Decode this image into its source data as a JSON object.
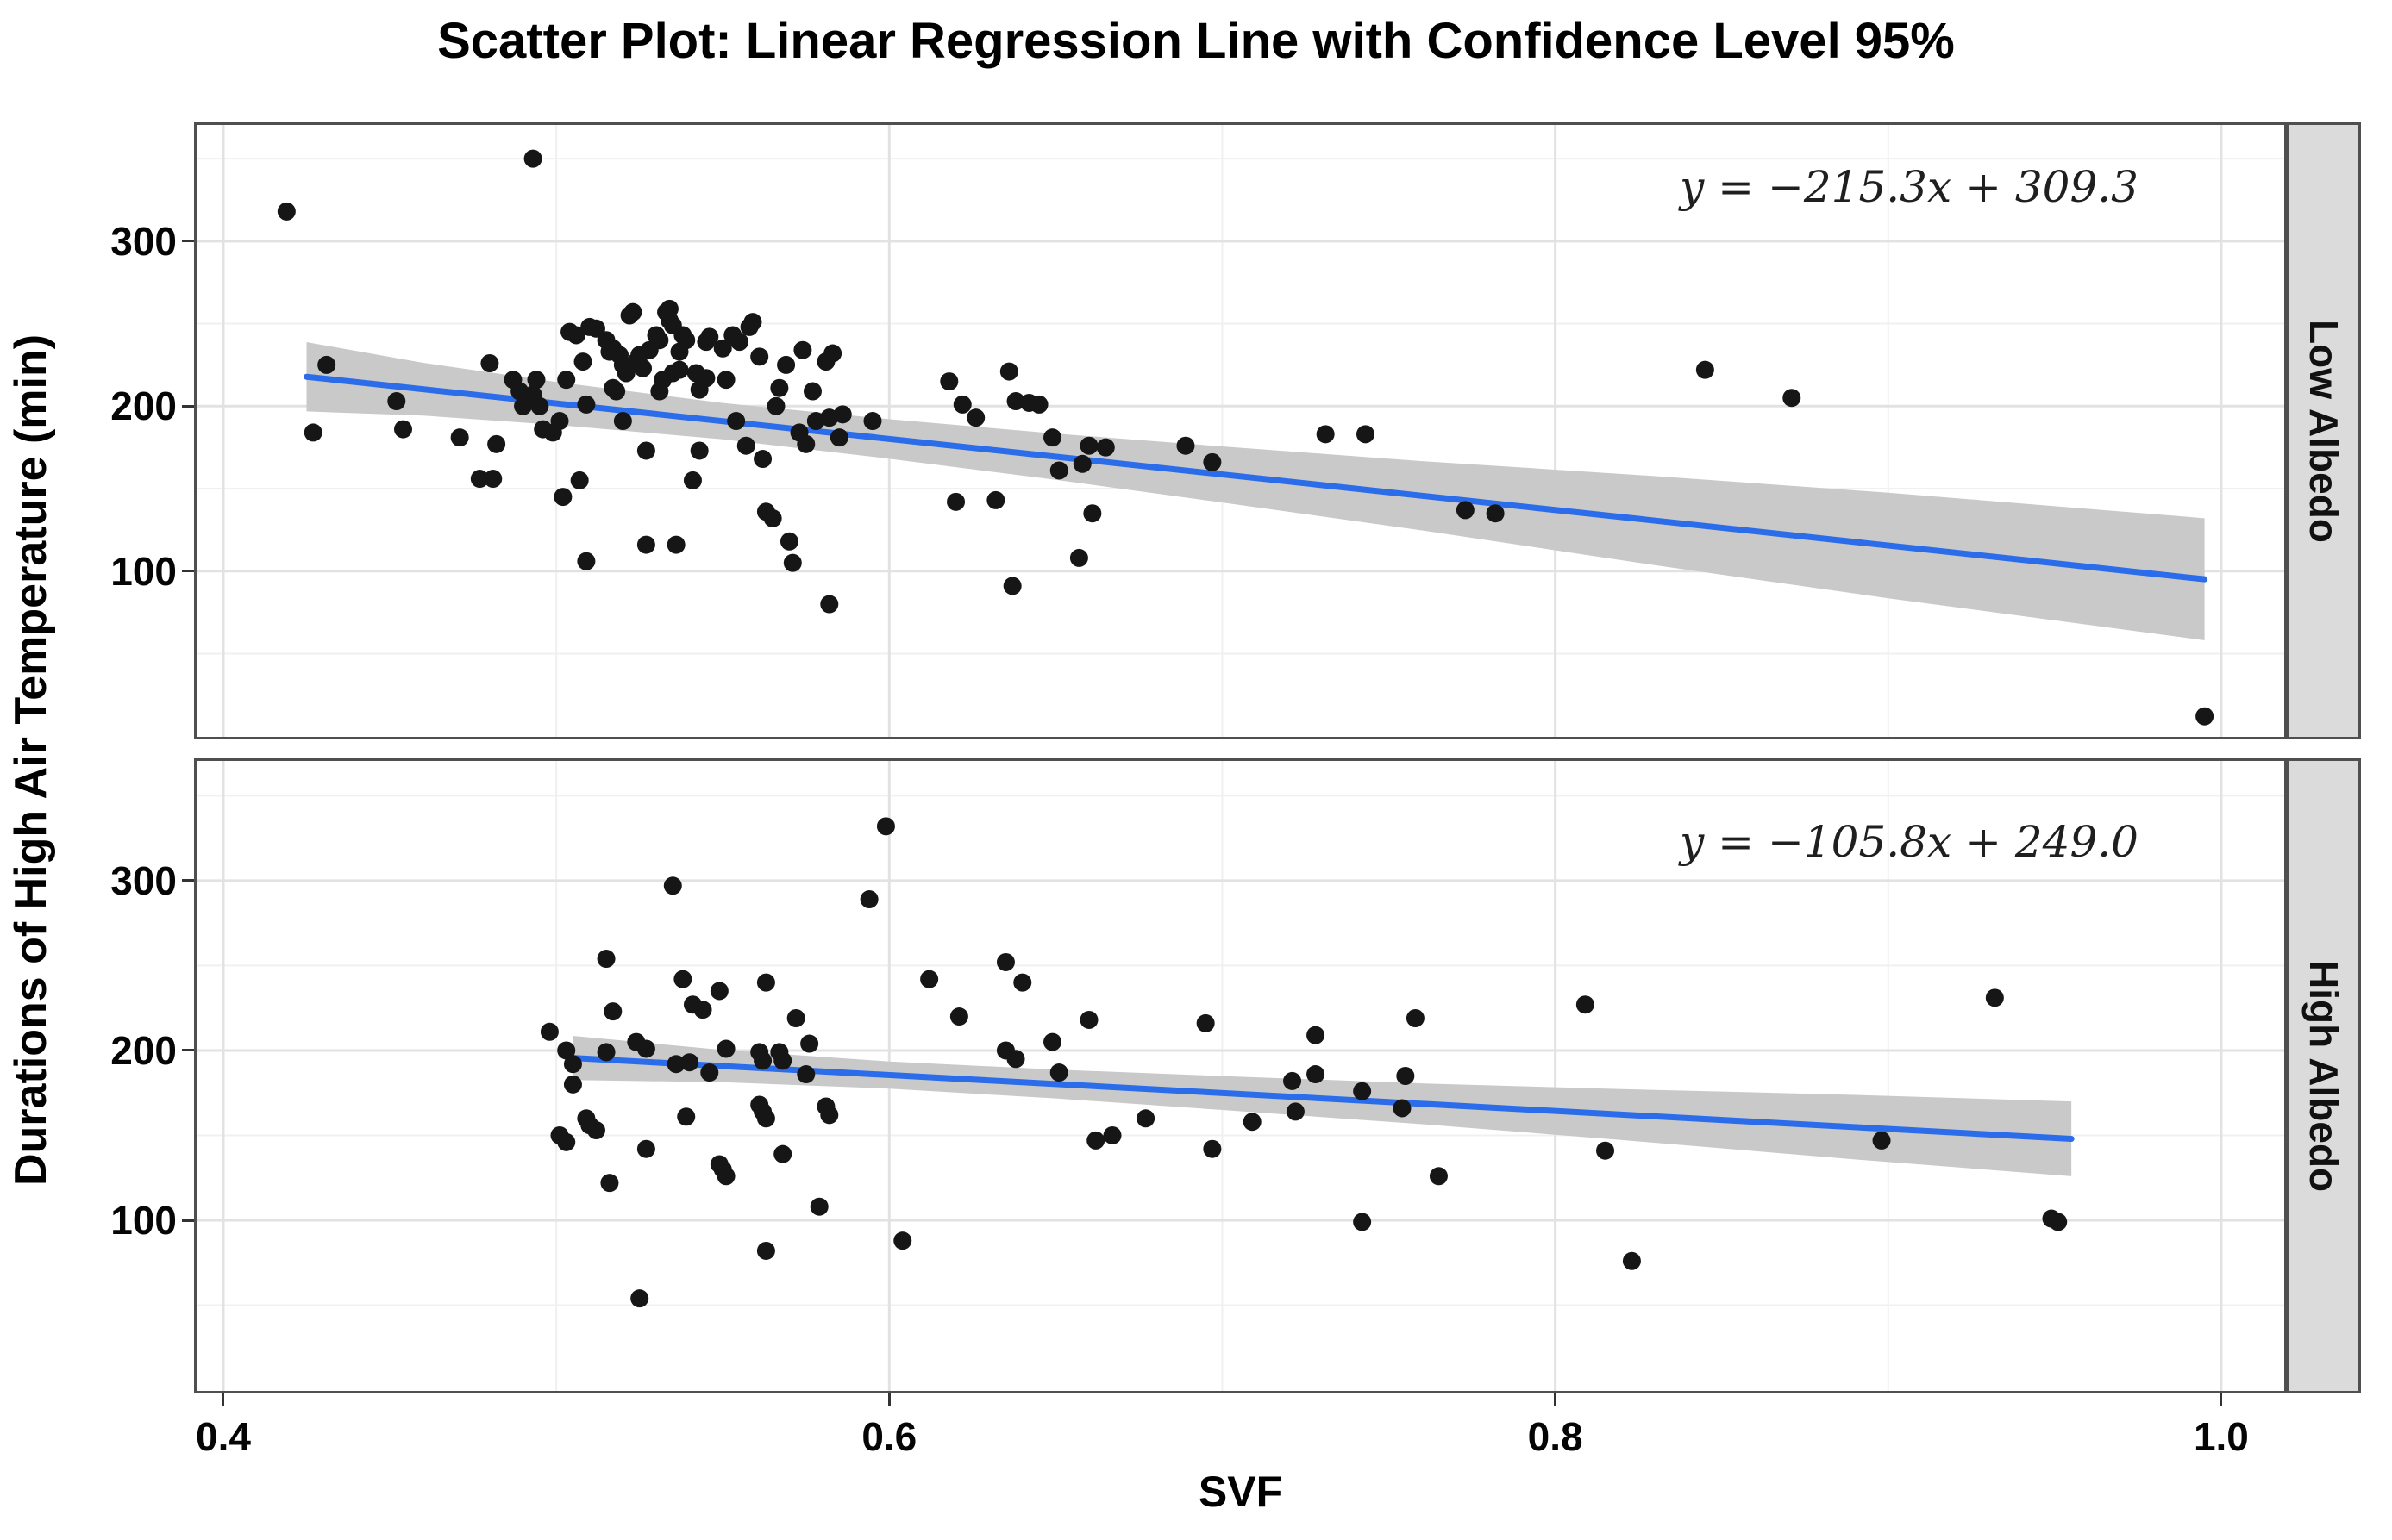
{
  "chart_data": {
    "type": "scatter",
    "title": "Scatter Plot: Linear Regression Line with Confidence Level 95%",
    "xlabel": "SVF",
    "ylabel": "Durations of High Air Temperature (min)",
    "legend": "none",
    "grid": "on",
    "xlim": [
      0.3912,
      1.0197
    ],
    "ylim": [
      -2,
      372
    ],
    "x_ticks": [
      0.4,
      0.6,
      0.8,
      1.0
    ],
    "x_tick_labels": [
      "0.4",
      "0.6",
      "0.8",
      "1.0"
    ],
    "x_minor_ticks": [
      0.5,
      0.7,
      0.9
    ],
    "y_ticks": [
      100,
      200,
      300
    ],
    "y_tick_labels": [
      "100",
      "200",
      "300"
    ],
    "y_minor_ticks": [
      50,
      150,
      250,
      350
    ],
    "colors": {
      "point": "#161616",
      "regression_line": "#2b6ceb",
      "confidence_band": "#c9c9c9",
      "grid_major": "#e2e2e2",
      "grid_minor": "#f0f0f0",
      "panel_border": "#4f4f4f",
      "strip_background": "#dbdbdb",
      "strip_border": "#4f4f4f",
      "text": "#000000"
    },
    "facets": [
      {
        "label": "Low Albedo",
        "equation": "y = −215.3x + 309.3",
        "slope": -215.3,
        "intercept": 309.3,
        "line_x_range": [
          0.425,
          0.995
        ],
        "confidence_band": {
          "x": [
            0.425,
            0.46,
            0.5,
            0.55,
            0.6,
            0.65,
            0.7,
            0.76,
            0.83,
            0.9,
            0.995
          ],
          "half_width": [
            21,
            16,
            13,
            11,
            12,
            14,
            17,
            21,
            27,
            32,
            37
          ]
        },
        "points": [
          [
            0.419,
            318
          ],
          [
            0.427,
            184
          ],
          [
            0.431,
            225
          ],
          [
            0.452,
            203
          ],
          [
            0.454,
            186
          ],
          [
            0.471,
            181
          ],
          [
            0.477,
            156
          ],
          [
            0.481,
            156
          ],
          [
            0.48,
            226
          ],
          [
            0.482,
            177
          ],
          [
            0.487,
            216
          ],
          [
            0.489,
            209
          ],
          [
            0.49,
            200
          ],
          [
            0.493,
            350
          ],
          [
            0.493,
            207
          ],
          [
            0.494,
            216
          ],
          [
            0.495,
            200
          ],
          [
            0.496,
            186
          ],
          [
            0.499,
            184
          ],
          [
            0.501,
            191
          ],
          [
            0.502,
            145
          ],
          [
            0.503,
            216
          ],
          [
            0.504,
            245
          ],
          [
            0.506,
            243
          ],
          [
            0.507,
            155
          ],
          [
            0.508,
            227
          ],
          [
            0.509,
            201
          ],
          [
            0.509,
            106
          ],
          [
            0.51,
            248
          ],
          [
            0.512,
            247
          ],
          [
            0.515,
            240
          ],
          [
            0.516,
            233
          ],
          [
            0.517,
            211
          ],
          [
            0.517,
            235
          ],
          [
            0.518,
            209
          ],
          [
            0.519,
            231
          ],
          [
            0.52,
            225
          ],
          [
            0.52,
            191
          ],
          [
            0.521,
            220
          ],
          [
            0.522,
            255
          ],
          [
            0.523,
            257
          ],
          [
            0.524,
            227
          ],
          [
            0.525,
            231
          ],
          [
            0.526,
            223
          ],
          [
            0.527,
            173
          ],
          [
            0.527,
            116
          ],
          [
            0.528,
            234
          ],
          [
            0.53,
            243
          ],
          [
            0.531,
            240
          ],
          [
            0.531,
            209
          ],
          [
            0.532,
            216
          ],
          [
            0.533,
            257
          ],
          [
            0.534,
            259
          ],
          [
            0.534,
            252
          ],
          [
            0.535,
            249
          ],
          [
            0.535,
            220
          ],
          [
            0.536,
            116
          ],
          [
            0.537,
            233
          ],
          [
            0.537,
            222
          ],
          [
            0.538,
            243
          ],
          [
            0.539,
            240
          ],
          [
            0.541,
            155
          ],
          [
            0.542,
            220
          ],
          [
            0.543,
            210
          ],
          [
            0.543,
            173
          ],
          [
            0.545,
            217
          ],
          [
            0.545,
            239
          ],
          [
            0.546,
            242
          ],
          [
            0.55,
            235
          ],
          [
            0.551,
            216
          ],
          [
            0.553,
            243
          ],
          [
            0.554,
            191
          ],
          [
            0.555,
            239
          ],
          [
            0.557,
            176
          ],
          [
            0.558,
            248
          ],
          [
            0.559,
            251
          ],
          [
            0.561,
            230
          ],
          [
            0.562,
            168
          ],
          [
            0.563,
            136
          ],
          [
            0.565,
            132
          ],
          [
            0.566,
            200
          ],
          [
            0.567,
            211
          ],
          [
            0.569,
            225
          ],
          [
            0.57,
            118
          ],
          [
            0.571,
            105
          ],
          [
            0.573,
            184
          ],
          [
            0.574,
            234
          ],
          [
            0.575,
            177
          ],
          [
            0.577,
            209
          ],
          [
            0.578,
            191
          ],
          [
            0.581,
            227
          ],
          [
            0.582,
            193
          ],
          [
            0.582,
            80
          ],
          [
            0.583,
            232
          ],
          [
            0.585,
            181
          ],
          [
            0.586,
            195
          ],
          [
            0.595,
            191
          ],
          [
            0.618,
            215
          ],
          [
            0.622,
            201
          ],
          [
            0.626,
            193
          ],
          [
            0.636,
            221
          ],
          [
            0.638,
            203
          ],
          [
            0.642,
            202
          ],
          [
            0.645,
            201
          ],
          [
            0.649,
            181
          ],
          [
            0.651,
            161
          ],
          [
            0.658,
            165
          ],
          [
            0.66,
            176
          ],
          [
            0.665,
            175
          ],
          [
            0.62,
            142
          ],
          [
            0.632,
            143
          ],
          [
            0.661,
            135
          ],
          [
            0.657,
            108
          ],
          [
            0.637,
            91
          ],
          [
            0.689,
            176
          ],
          [
            0.697,
            166
          ],
          [
            0.731,
            183
          ],
          [
            0.743,
            183
          ],
          [
            0.773,
            137
          ],
          [
            0.782,
            135
          ],
          [
            0.845,
            222
          ],
          [
            0.871,
            205
          ],
          [
            0.995,
            12
          ]
        ]
      },
      {
        "label": "High Albedo",
        "equation": "y = −105.8x + 249.0",
        "slope": -105.8,
        "intercept": 249.0,
        "line_x_range": [
          0.505,
          0.955
        ],
        "confidence_band": {
          "x": [
            0.505,
            0.55,
            0.6,
            0.65,
            0.7,
            0.76,
            0.82,
            0.89,
            0.955
          ],
          "half_width": [
            13,
            9.5,
            8,
            8.5,
            10,
            12,
            15,
            19,
            22
          ]
        },
        "points": [
          [
            0.498,
            211
          ],
          [
            0.501,
            150
          ],
          [
            0.503,
            200
          ],
          [
            0.503,
            146
          ],
          [
            0.505,
            192
          ],
          [
            0.505,
            180
          ],
          [
            0.509,
            160
          ],
          [
            0.51,
            156
          ],
          [
            0.512,
            153
          ],
          [
            0.515,
            254
          ],
          [
            0.515,
            199
          ],
          [
            0.516,
            122
          ],
          [
            0.517,
            223
          ],
          [
            0.524,
            205
          ],
          [
            0.525,
            54
          ],
          [
            0.527,
            201
          ],
          [
            0.527,
            142
          ],
          [
            0.535,
            297
          ],
          [
            0.536,
            192
          ],
          [
            0.538,
            242
          ],
          [
            0.539,
            161
          ],
          [
            0.54,
            193
          ],
          [
            0.541,
            227
          ],
          [
            0.544,
            224
          ],
          [
            0.546,
            187
          ],
          [
            0.549,
            235
          ],
          [
            0.549,
            133
          ],
          [
            0.55,
            130
          ],
          [
            0.551,
            201
          ],
          [
            0.551,
            126
          ],
          [
            0.561,
            199
          ],
          [
            0.561,
            168
          ],
          [
            0.562,
            194
          ],
          [
            0.562,
            164
          ],
          [
            0.563,
            240
          ],
          [
            0.563,
            160
          ],
          [
            0.563,
            82
          ],
          [
            0.567,
            199
          ],
          [
            0.568,
            194
          ],
          [
            0.568,
            139
          ],
          [
            0.572,
            219
          ],
          [
            0.575,
            186
          ],
          [
            0.576,
            204
          ],
          [
            0.579,
            108
          ],
          [
            0.581,
            167
          ],
          [
            0.582,
            162
          ],
          [
            0.594,
            289
          ],
          [
            0.599,
            332
          ],
          [
            0.604,
            88
          ],
          [
            0.612,
            242
          ],
          [
            0.621,
            220
          ],
          [
            0.635,
            252
          ],
          [
            0.635,
            200
          ],
          [
            0.638,
            195
          ],
          [
            0.64,
            240
          ],
          [
            0.649,
            205
          ],
          [
            0.651,
            187
          ],
          [
            0.66,
            218
          ],
          [
            0.662,
            147
          ],
          [
            0.667,
            150
          ],
          [
            0.677,
            160
          ],
          [
            0.695,
            216
          ],
          [
            0.697,
            142
          ],
          [
            0.709,
            158
          ],
          [
            0.721,
            182
          ],
          [
            0.722,
            164
          ],
          [
            0.728,
            209
          ],
          [
            0.728,
            186
          ],
          [
            0.742,
            176
          ],
          [
            0.742,
            99
          ],
          [
            0.754,
            166
          ],
          [
            0.755,
            185
          ],
          [
            0.758,
            219
          ],
          [
            0.765,
            126
          ],
          [
            0.809,
            227
          ],
          [
            0.815,
            141
          ],
          [
            0.823,
            76
          ],
          [
            0.898,
            147
          ],
          [
            0.932,
            231
          ],
          [
            0.949,
            101
          ],
          [
            0.951,
            99
          ]
        ]
      }
    ]
  }
}
